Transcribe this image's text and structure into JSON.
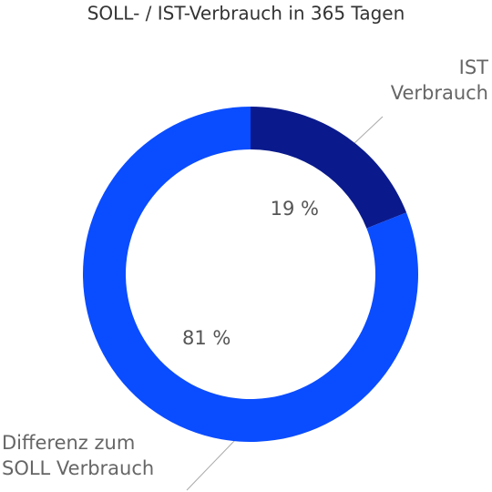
{
  "chart_data": {
    "type": "donut",
    "title": "SOLL- / IST-Verbrauch in 365 Tagen",
    "categories": [
      "IST Verbrauch",
      "Differenz zum SOLL Verbrauch"
    ],
    "values": [
      19,
      81
    ],
    "value_labels": [
      "19 %",
      "81 %"
    ],
    "colors": [
      "#0a1a8c",
      "#0a4cff"
    ]
  }
}
